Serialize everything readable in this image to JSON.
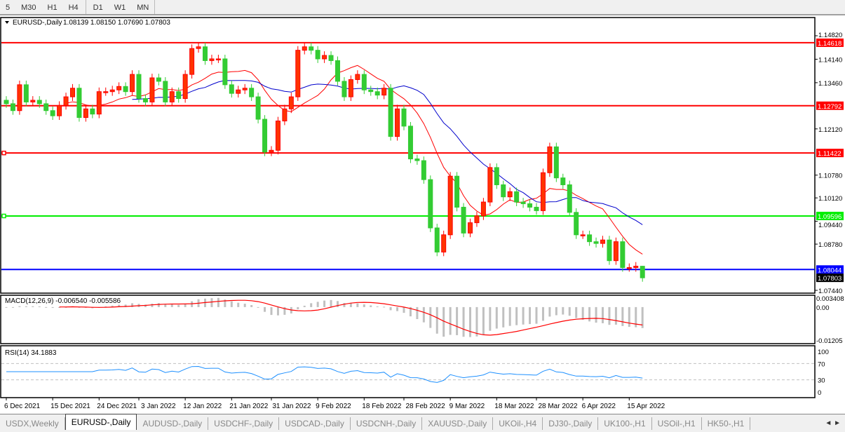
{
  "toolbar": {
    "timeframes": [
      "5",
      "M30",
      "H1",
      "H4",
      "D1",
      "W1",
      "MN"
    ],
    "active": "D1"
  },
  "chart": {
    "symbol_label": "EURUSD-,Daily",
    "ohlc_label": "1.08139 1.08150 1.07690 1.07803",
    "bull_color": "#ff3300",
    "bear_color": "#33cc33",
    "price_ticks": [
      "1.14820",
      "1.14140",
      "1.13460",
      "1.12120",
      "1.10780",
      "1.10120",
      "1.09440",
      "1.08780",
      "1.07440"
    ],
    "price_axis": {
      "top_label": 1.1482,
      "bottom_label": 1.0744
    },
    "levels": [
      {
        "price": "1.14618",
        "color": "#ff0000"
      },
      {
        "price": "1.12792",
        "color": "#ff0000"
      },
      {
        "price": "1.11422",
        "color": "#ff0000"
      },
      {
        "price": "1.09596",
        "color": "#00ee00"
      },
      {
        "price": "1.08044",
        "color": "#0000ff"
      }
    ],
    "current_price": "1.07803",
    "last_bar": {
      "open": 1.08139,
      "high": 1.0815,
      "low": 1.0769,
      "close": 1.07803
    },
    "closes": [
      1.1285,
      1.1265,
      1.134,
      1.129,
      1.1295,
      1.1285,
      1.1265,
      1.125,
      1.128,
      1.1305,
      1.133,
      1.1245,
      1.127,
      1.1255,
      1.132,
      1.132,
      1.1325,
      1.1335,
      1.132,
      1.137,
      1.13,
      1.129,
      1.136,
      1.135,
      1.129,
      1.132,
      1.13,
      1.137,
      1.1445,
      1.145,
      1.141,
      1.1415,
      1.1415,
      1.134,
      1.1315,
      1.1325,
      1.133,
      1.1305,
      1.124,
      1.1145,
      1.115,
      1.1235,
      1.127,
      1.1305,
      1.144,
      1.145,
      1.144,
      1.1415,
      1.1425,
      1.141,
      1.135,
      1.1305,
      1.1355,
      1.137,
      1.1325,
      1.132,
      1.131,
      1.133,
      1.119,
      1.127,
      1.122,
      1.1125,
      1.112,
      1.1065,
      1.0925,
      1.0855,
      1.0905,
      1.1075,
      1.0985,
      1.091,
      1.094,
      1.096,
      1.1,
      1.11,
      1.105,
      1.1015,
      1.103,
      1.1,
      1.0995,
      1.0985,
      1.0975,
      1.1085,
      1.116,
      1.107,
      1.105,
      1.097,
      1.0905,
      1.0905,
      1.0885,
      1.088,
      1.089,
      1.083,
      1.0885,
      1.081,
      1.081,
      1.0814,
      1.07803
    ],
    "ma_colors": {
      "fast": "#ff0000",
      "slow": "#0000cc"
    },
    "date_ticks": [
      {
        "label": "6 Dec 2021",
        "index": 0
      },
      {
        "label": "15 Dec 2021",
        "index": 7
      },
      {
        "label": "24 Dec 2021",
        "index": 14
      },
      {
        "label": "3 Jan 2022",
        "index": 20
      },
      {
        "label": "12 Jan 2022",
        "index": 27
      },
      {
        "label": "21 Jan 2022",
        "index": 34
      },
      {
        "label": "31 Jan 2022",
        "index": 40
      },
      {
        "label": "9 Feb 2022",
        "index": 47
      },
      {
        "label": "18 Feb 2022",
        "index": 54
      },
      {
        "label": "28 Feb 2022",
        "index": 60
      },
      {
        "label": "9 Mar 2022",
        "index": 67
      },
      {
        "label": "18 Mar 2022",
        "index": 74
      },
      {
        "label": "28 Mar 2022",
        "index": 80
      },
      {
        "label": "6 Apr 2022",
        "index": 87
      },
      {
        "label": "15 Apr 2022",
        "index": 94
      }
    ]
  },
  "macd": {
    "label": "MACD(12,26,9) -0.006540 -0.005586",
    "top": "0.003408",
    "zero": "0.00",
    "bottom": "-0.01205",
    "top_value": 0.003408,
    "bottom_value": -0.01205
  },
  "rsi": {
    "label": "RSI(14) 34.1883",
    "ticks": [
      "100",
      "70",
      "30",
      "0"
    ]
  },
  "tabs": [
    "USDX,Weekly",
    "EURUSD-,Daily",
    "AUDUSD-,Daily",
    "USDCHF-,Daily",
    "USDCAD-,Daily",
    "USDCNH-,Daily",
    "XAUUSD-,Daily",
    "UKOil-,H4",
    "DJ30-,Daily",
    "UK100-,H1",
    "USOil-,H1",
    "HK50-,H1"
  ],
  "active_tab": "EURUSD-,Daily"
}
